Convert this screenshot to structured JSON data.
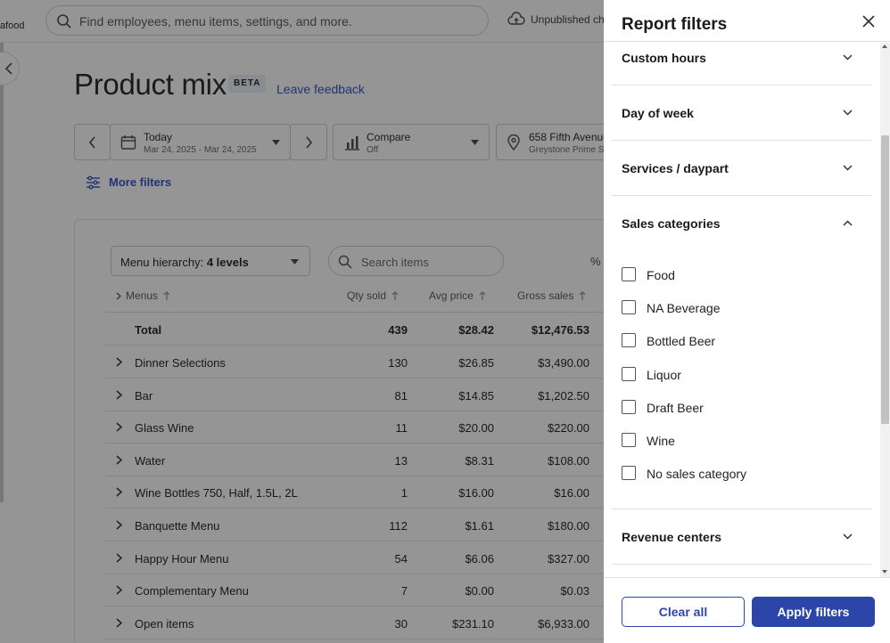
{
  "topbar": {
    "brand_fragment": "afood",
    "search_placeholder": "Find employees, menu items, settings, and more.",
    "unpublished_label": "Unpublished cha"
  },
  "page": {
    "title": "Product mix",
    "beta_badge": "BETA",
    "feedback_link": "Leave feedback",
    "date_label": "Today",
    "date_range": "Mar 24, 2025 - Mar 24, 2025",
    "compare_label": "Compare",
    "compare_value": "Off",
    "location_line1": "658 Fifth Avenue",
    "location_line2": "Greystone Prime S",
    "more_filters": "More filters"
  },
  "table": {
    "hierarchy_prefix": "Menu hierarchy:",
    "hierarchy_value": "4 levels",
    "search_placeholder": "Search items",
    "pct_fragment": "% ",
    "headers": {
      "menus": "Menus",
      "qty": "Qty sold",
      "avg": "Avg price",
      "gross": "Gross sales"
    },
    "total": {
      "name": "Total",
      "qty": "439",
      "avg": "$28.42",
      "gross": "$12,476.53"
    },
    "rows": [
      {
        "name": "Dinner Selections",
        "qty": "130",
        "avg": "$26.85",
        "gross": "$3,490.00"
      },
      {
        "name": "Bar",
        "qty": "81",
        "avg": "$14.85",
        "gross": "$1,202.50"
      },
      {
        "name": "Glass Wine",
        "qty": "11",
        "avg": "$20.00",
        "gross": "$220.00"
      },
      {
        "name": "Water",
        "qty": "13",
        "avg": "$8.31",
        "gross": "$108.00"
      },
      {
        "name": "Wine Bottles 750, Half, 1.5L, 2L",
        "qty": "1",
        "avg": "$16.00",
        "gross": "$16.00"
      },
      {
        "name": "Banquette Menu",
        "qty": "112",
        "avg": "$1.61",
        "gross": "$180.00"
      },
      {
        "name": "Happy Hour Menu",
        "qty": "54",
        "avg": "$6.06",
        "gross": "$327.00"
      },
      {
        "name": "Complementary Menu",
        "qty": "7",
        "avg": "$0.00",
        "gross": "$0.03"
      },
      {
        "name": "Open items",
        "qty": "30",
        "avg": "$231.10",
        "gross": "$6,933.00"
      }
    ]
  },
  "drawer": {
    "title": "Report filters",
    "sections": {
      "custom_hours": "Custom hours",
      "day_of_week": "Day of week",
      "services": "Services / daypart",
      "sales_categories": "Sales categories",
      "revenue_centers": "Revenue centers"
    },
    "sales_categories_options": [
      {
        "label": "Food",
        "checked": false
      },
      {
        "label": "NA Beverage",
        "checked": false
      },
      {
        "label": "Bottled Beer",
        "checked": false
      },
      {
        "label": "Liquor",
        "checked": false
      },
      {
        "label": "Draft Beer",
        "checked": false
      },
      {
        "label": "Wine",
        "checked": false
      },
      {
        "label": "No sales category",
        "checked": false
      }
    ],
    "clear_all": "Clear all",
    "apply": "Apply filters"
  },
  "colors": {
    "accent": "#2b45a8",
    "link": "#2b4fbf",
    "overlay": "#141414"
  }
}
